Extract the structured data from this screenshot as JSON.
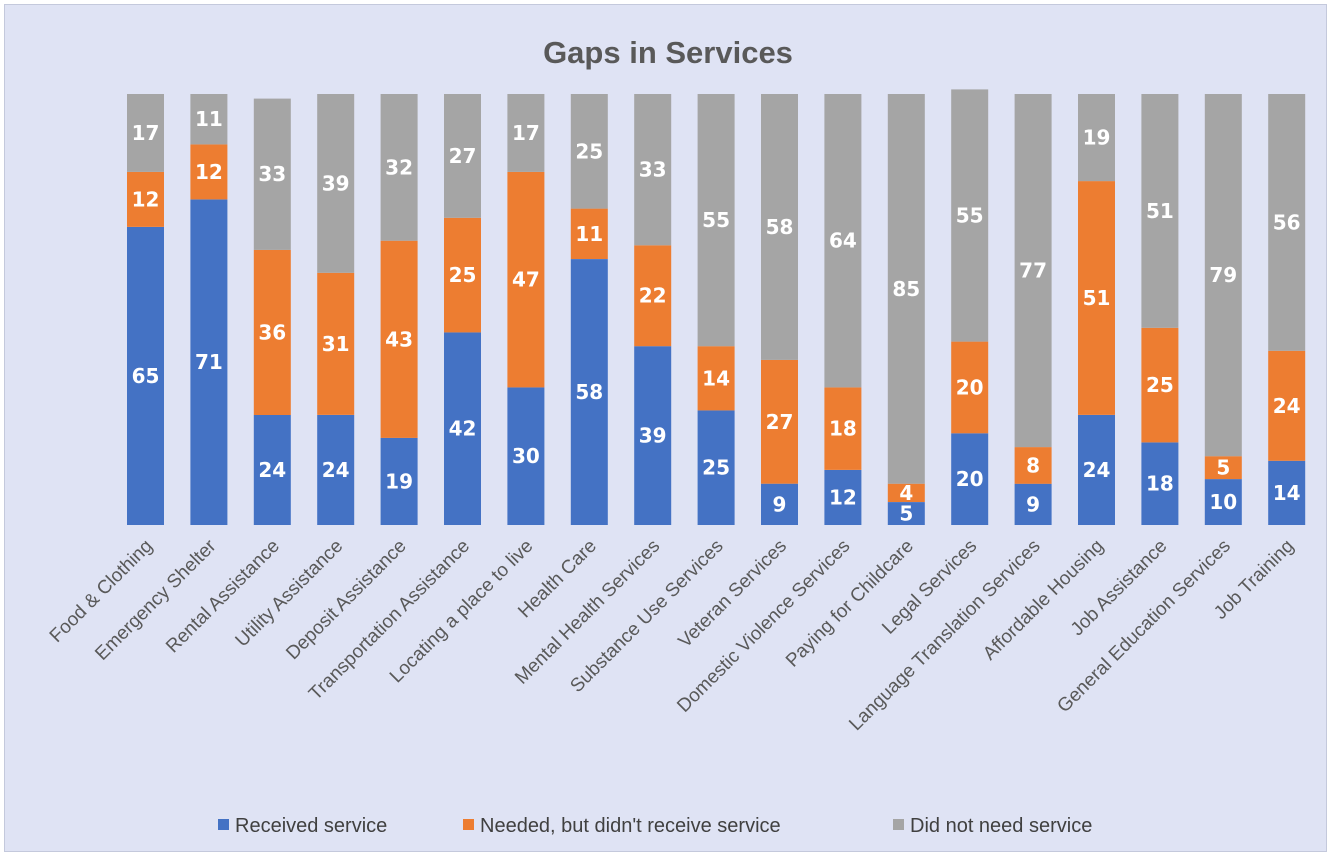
{
  "chart_data": {
    "type": "bar",
    "stacked": true,
    "title": "Gaps in Services",
    "categories": [
      "Food & Clothing",
      "Emergency Shelter",
      "Rental Assistance",
      "Utility Assistance",
      "Deposit Assistance",
      "Transportation Assistance",
      "Locating a place to live",
      "Health Care",
      "Mental Health Services",
      "Substance Use Services",
      "Veteran Services",
      "Domestic Violence Services",
      "Paying for Childcare",
      "Legal Services",
      "Language Translation Services",
      "Affordable Housing",
      "Job Assistance",
      "General Education Services",
      "Job Training"
    ],
    "series": [
      {
        "name": "Received service",
        "color": "#4472c4",
        "values": [
          65,
          71,
          24,
          24,
          19,
          42,
          30,
          58,
          39,
          25,
          9,
          12,
          5,
          20,
          9,
          24,
          18,
          10,
          14
        ]
      },
      {
        "name": "Needed, but didn't receive service",
        "color": "#ed7d31",
        "values": [
          12,
          12,
          36,
          31,
          43,
          25,
          47,
          11,
          22,
          14,
          27,
          18,
          4,
          20,
          8,
          51,
          25,
          5,
          24
        ]
      },
      {
        "name": "Did not need service",
        "color": "#a5a5a5",
        "values": [
          17,
          11,
          33,
          39,
          32,
          27,
          17,
          25,
          33,
          55,
          58,
          64,
          85,
          55,
          77,
          19,
          51,
          79,
          56
        ]
      }
    ],
    "ylim": [
      0,
      94
    ],
    "grid": false,
    "legend": "bottom",
    "data_labels": true
  }
}
